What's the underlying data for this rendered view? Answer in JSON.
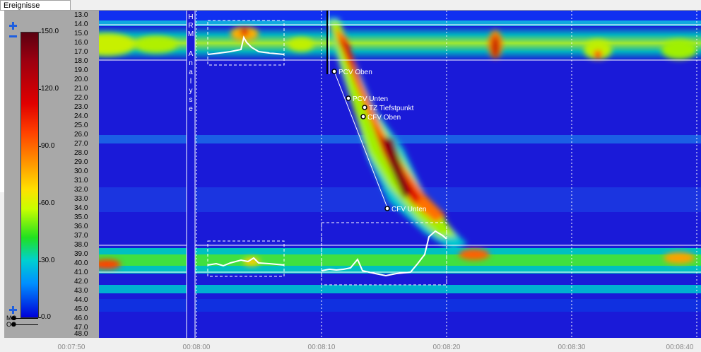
{
  "tab": {
    "label": "Ereignisse"
  },
  "colorbar": {
    "labels": [
      "150.0",
      "120.0",
      "90.0",
      "60.0",
      "30.0",
      "0.0"
    ]
  },
  "channels": {
    "mo_top": "MO",
    "mo_bottom": "OO"
  },
  "yaxis": {
    "labels": [
      "13.0",
      "14.0",
      "15.0",
      "16.0",
      "17.0",
      "18.0",
      "19.0",
      "20.0",
      "21.0",
      "22.0",
      "23.0",
      "24.0",
      "25.0",
      "26.0",
      "27.0",
      "28.0",
      "29.0",
      "30.0",
      "31.0",
      "32.0",
      "33.0",
      "34.0",
      "35.0",
      "36.0",
      "37.0",
      "38.0",
      "39.0",
      "40.0",
      "41.0",
      "42.0",
      "43.0",
      "44.0",
      "45.0",
      "46.0",
      "47.0",
      "48.0"
    ]
  },
  "xaxis": {
    "labels": [
      "00:07:50",
      "00:08:00",
      "00:08:10",
      "00:08:20",
      "00:08:30",
      "00:08:40"
    ]
  },
  "analysis_label": [
    "H",
    "R",
    "M",
    "",
    "A",
    "n",
    "a",
    "l",
    "y",
    "s",
    "e"
  ],
  "annotations": [
    {
      "label": "PCV Oben"
    },
    {
      "label": "PCV Unten"
    },
    {
      "label": "TZ Tiefstpunkt"
    },
    {
      "label": "CFV Oben"
    },
    {
      "label": "CFV Unten"
    }
  ],
  "colors": {
    "background": "#1a1ad8",
    "accent": "#1e5fe0"
  }
}
